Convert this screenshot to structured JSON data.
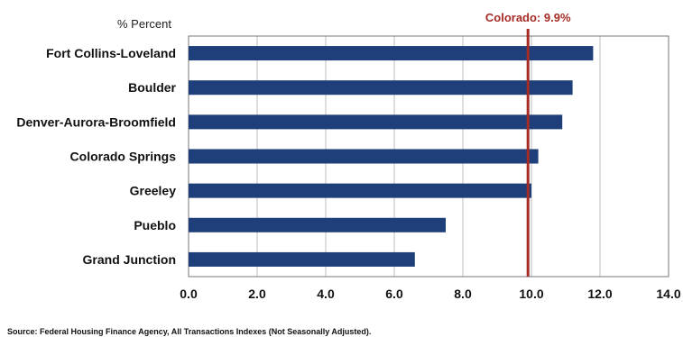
{
  "chart_data": {
    "type": "bar",
    "orientation": "horizontal",
    "unit_label": "% Percent",
    "categories": [
      "Fort Collins-Loveland",
      "Boulder",
      "Denver-Aurora-Broomfield",
      "Colorado Springs",
      "Greeley",
      "Pueblo",
      "Grand Junction"
    ],
    "values": [
      11.8,
      11.2,
      10.9,
      10.2,
      10.0,
      7.5,
      6.6
    ],
    "xlim": [
      0,
      14
    ],
    "x_ticks": [
      "0.0",
      "2.0",
      "4.0",
      "6.0",
      "8.0",
      "10.0",
      "12.0",
      "14.0"
    ],
    "reference_line": {
      "value": 9.9,
      "label": "Colorado: 9.9%"
    },
    "grid": "vertical",
    "source": "Source: Federal Housing Finance Agency, All Transactions Indexes (Not Seasonally Adjusted)."
  },
  "colors": {
    "bar": "#1f3f7a",
    "reference_line": "#a62b25",
    "grid": "#bdbdbd",
    "frame": "#777777"
  }
}
